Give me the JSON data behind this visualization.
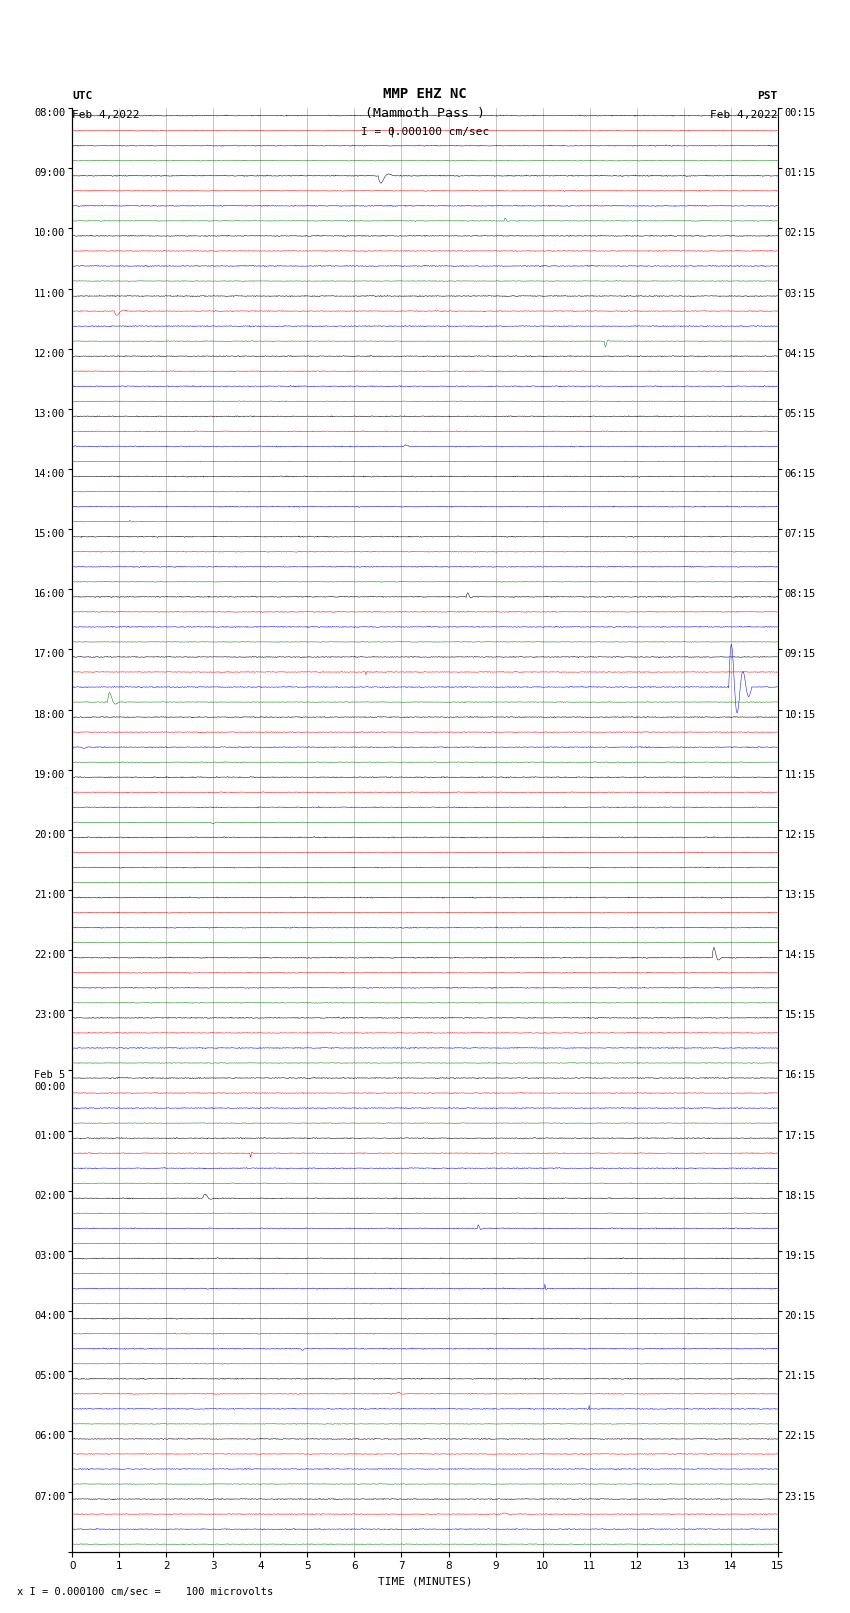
{
  "title_line1": "MMP EHZ NC",
  "title_line2": "(Mammoth Pass )",
  "scale_label": "I = 0.000100 cm/sec",
  "utc_label": "UTC",
  "utc_date": "Feb 4,2022",
  "pst_label": "PST",
  "pst_date": "Feb 4,2022",
  "bottom_label": "x I = 0.000100 cm/sec =    100 microvolts",
  "xlabel": "TIME (MINUTES)",
  "left_times_utc": [
    "08:00",
    "09:00",
    "10:00",
    "11:00",
    "12:00",
    "13:00",
    "14:00",
    "15:00",
    "16:00",
    "17:00",
    "18:00",
    "19:00",
    "20:00",
    "21:00",
    "22:00",
    "23:00",
    "Feb 5\n00:00",
    "01:00",
    "02:00",
    "03:00",
    "04:00",
    "05:00",
    "06:00",
    "07:00",
    ""
  ],
  "right_times_pst": [
    "00:15",
    "01:15",
    "02:15",
    "03:15",
    "04:15",
    "05:15",
    "06:15",
    "07:15",
    "08:15",
    "09:15",
    "10:15",
    "11:15",
    "12:15",
    "13:15",
    "14:15",
    "15:15",
    "16:15",
    "17:15",
    "18:15",
    "19:15",
    "20:15",
    "21:15",
    "22:15",
    "23:15",
    ""
  ],
  "colors": [
    "black",
    "red",
    "blue",
    "green"
  ],
  "n_hours": 24,
  "n_traces_per_hour": 4,
  "minutes": 15,
  "background_color": "white",
  "noise_scale_black": 0.03,
  "noise_scale_red": 0.025,
  "noise_scale_blue": 0.03,
  "noise_scale_green": 0.02,
  "grid_color": "#999999",
  "title_fontsize": 10,
  "label_fontsize": 8,
  "tick_fontsize": 7.5
}
